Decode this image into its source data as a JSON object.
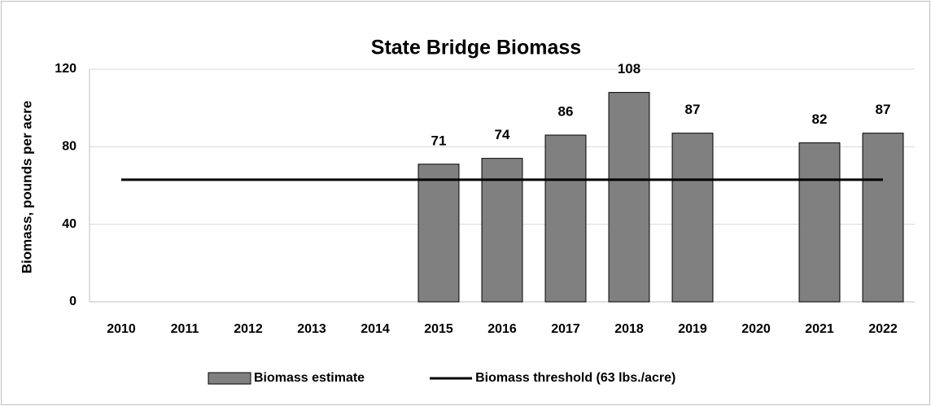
{
  "chart_data": {
    "type": "bar",
    "title": "State Bridge Biomass",
    "y_label": "Biomass, pounds per acre",
    "categories": [
      "2010",
      "2011",
      "2012",
      "2013",
      "2014",
      "2015",
      "2016",
      "2017",
      "2018",
      "2019",
      "2020",
      "2021",
      "2022"
    ],
    "series": [
      {
        "name": "Biomass estimate",
        "type": "bar",
        "color": "#808080",
        "values": [
          null,
          null,
          null,
          null,
          null,
          71,
          74,
          86,
          108,
          87,
          null,
          82,
          87
        ]
      },
      {
        "name": "Biomass threshold (63 lbs./acre)",
        "type": "line",
        "color": "#000000",
        "values": [
          63,
          63,
          63,
          63,
          63,
          63,
          63,
          63,
          63,
          63,
          63,
          63,
          63
        ]
      }
    ],
    "ylim": [
      0,
      120
    ],
    "yticks": [
      0,
      40,
      80,
      120
    ],
    "grid": true,
    "legend": "bottom"
  }
}
